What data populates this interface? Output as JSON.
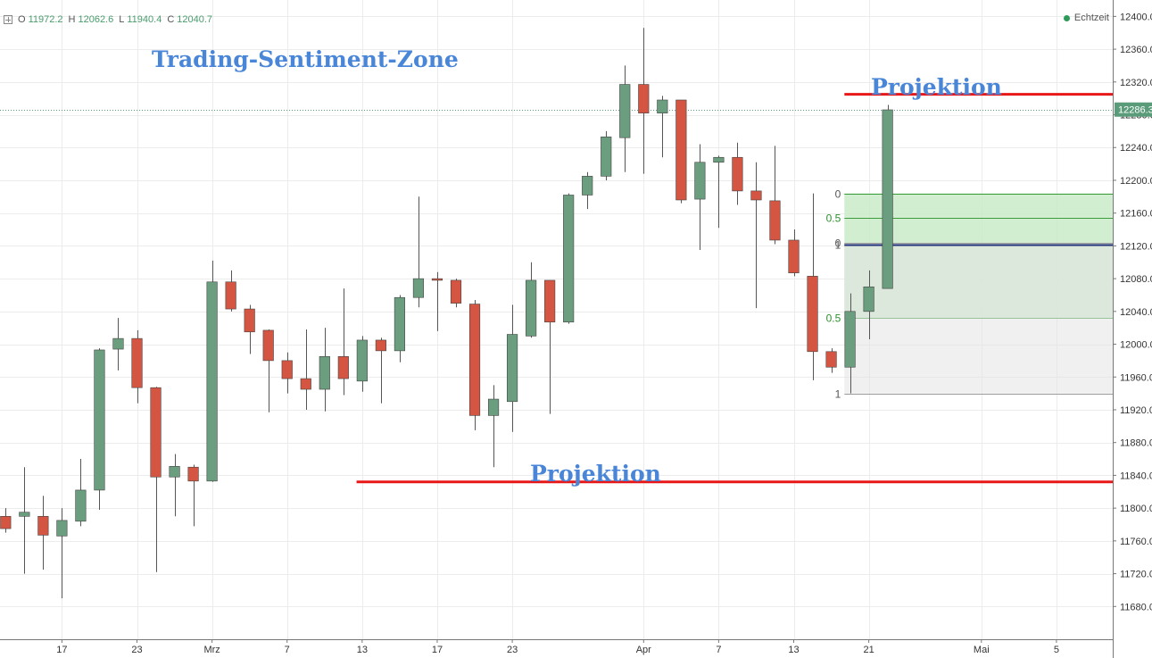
{
  "header": {
    "ohlc": [
      {
        "key": "O",
        "value": "11972.2"
      },
      {
        "key": "H",
        "value": "12062.6"
      },
      {
        "key": "L",
        "value": "11940.4"
      },
      {
        "key": "C",
        "value": "12040.7"
      }
    ],
    "realtime_label": "Echtzeit"
  },
  "annotations": {
    "title": "Trading-Sentiment-Zone",
    "projection_top": "Projektion",
    "projection_bottom": "Projektion"
  },
  "colors": {
    "up": "#6a9e7f",
    "down": "#d45541",
    "grid": "#ececec",
    "projection_line": "#e81818",
    "annotation": "#4a86d8",
    "price_tag": "#5a9c7a",
    "zone_green": "#c9ebc9",
    "zone_gray": "#e4e4e4"
  },
  "chart_data": {
    "type": "candlestick",
    "y_axis": {
      "range": [
        11640,
        12420
      ],
      "ticks": [
        "11680.0",
        "11720.0",
        "11760.0",
        "11800.0",
        "11840.0",
        "11880.0",
        "11920.0",
        "11960.0",
        "12000.0",
        "12040.0",
        "12080.0",
        "12120.0",
        "12160.0",
        "12200.0",
        "12240.0",
        "12280.0",
        "12320.0",
        "12360.0",
        "12400.0"
      ],
      "current_price": "12286.3"
    },
    "x_axis": {
      "ticks": [
        {
          "label": "17",
          "i": 3
        },
        {
          "label": "23",
          "i": 7
        },
        {
          "label": "Mrz",
          "i": 11
        },
        {
          "label": "7",
          "i": 15
        },
        {
          "label": "13",
          "i": 19
        },
        {
          "label": "17",
          "i": 23
        },
        {
          "label": "23",
          "i": 27
        },
        {
          "label": "Apr",
          "i": 34
        },
        {
          "label": "7",
          "i": 38
        },
        {
          "label": "13",
          "i": 42
        },
        {
          "label": "21",
          "i": 46
        },
        {
          "label": "Mai",
          "i": 52
        },
        {
          "label": "5",
          "i": 56
        }
      ],
      "index_range": [
        -0.3,
        59
      ]
    },
    "candles": [
      {
        "o": 11790,
        "h": 11800,
        "l": 11770,
        "c": 11775
      },
      {
        "o": 11790,
        "h": 11850,
        "l": 11720,
        "c": 11795
      },
      {
        "o": 11790,
        "h": 11815,
        "l": 11725,
        "c": 11767
      },
      {
        "o": 11766,
        "h": 11800,
        "l": 11690,
        "c": 11785
      },
      {
        "o": 11784,
        "h": 11860,
        "l": 11778,
        "c": 11822
      },
      {
        "o": 11822,
        "h": 11995,
        "l": 11798,
        "c": 11993
      },
      {
        "o": 11994,
        "h": 12032,
        "l": 11968,
        "c": 12007
      },
      {
        "o": 12007,
        "h": 12017,
        "l": 11928,
        "c": 11947
      },
      {
        "o": 11947,
        "h": 11948,
        "l": 11722,
        "c": 11838
      },
      {
        "o": 11838,
        "h": 11866,
        "l": 11790,
        "c": 11851
      },
      {
        "o": 11850,
        "h": 11853,
        "l": 11778,
        "c": 11833
      },
      {
        "o": 11833,
        "h": 12102,
        "l": 11832,
        "c": 12076
      },
      {
        "o": 12076,
        "h": 12090,
        "l": 12040,
        "c": 12043
      },
      {
        "o": 12043,
        "h": 12048,
        "l": 11988,
        "c": 12015
      },
      {
        "o": 12017,
        "h": 12018,
        "l": 11917,
        "c": 11980
      },
      {
        "o": 11980,
        "h": 11990,
        "l": 11940,
        "c": 11958
      },
      {
        "o": 11958,
        "h": 12018,
        "l": 11920,
        "c": 11945
      },
      {
        "o": 11945,
        "h": 12020,
        "l": 11918,
        "c": 11985
      },
      {
        "o": 11985,
        "h": 12068,
        "l": 11938,
        "c": 11958
      },
      {
        "o": 11955,
        "h": 12010,
        "l": 11942,
        "c": 12005
      },
      {
        "o": 12005,
        "h": 12008,
        "l": 11928,
        "c": 11992
      },
      {
        "o": 11992,
        "h": 12060,
        "l": 11978,
        "c": 12057
      },
      {
        "o": 12057,
        "h": 12180,
        "l": 12045,
        "c": 12080
      },
      {
        "o": 12080,
        "h": 12088,
        "l": 12016,
        "c": 12078
      },
      {
        "o": 12078,
        "h": 12080,
        "l": 12045,
        "c": 12050
      },
      {
        "o": 12049,
        "h": 12054,
        "l": 11895,
        "c": 11913
      },
      {
        "o": 11913,
        "h": 11950,
        "l": 11850,
        "c": 11933
      },
      {
        "o": 11930,
        "h": 12048,
        "l": 11893,
        "c": 12012
      },
      {
        "o": 12010,
        "h": 12100,
        "l": 12008,
        "c": 12078
      },
      {
        "o": 12078,
        "h": 12078,
        "l": 11915,
        "c": 12027
      },
      {
        "o": 12027,
        "h": 12184,
        "l": 12025,
        "c": 12182
      },
      {
        "o": 12182,
        "h": 12210,
        "l": 12165,
        "c": 12205
      },
      {
        "o": 12205,
        "h": 12260,
        "l": 12200,
        "c": 12253
      },
      {
        "o": 12252,
        "h": 12340,
        "l": 12210,
        "c": 12317
      },
      {
        "o": 12317,
        "h": 12386,
        "l": 12208,
        "c": 12282
      },
      {
        "o": 12282,
        "h": 12303,
        "l": 12228,
        "c": 12298
      },
      {
        "o": 12298,
        "h": 12298,
        "l": 12172,
        "c": 12176
      },
      {
        "o": 12177,
        "h": 12244,
        "l": 12115,
        "c": 12222
      },
      {
        "o": 12222,
        "h": 12230,
        "l": 12142,
        "c": 12228
      },
      {
        "o": 12228,
        "h": 12246,
        "l": 12170,
        "c": 12187
      },
      {
        "o": 12187,
        "h": 12222,
        "l": 12044,
        "c": 12176
      },
      {
        "o": 12175,
        "h": 12242,
        "l": 12122,
        "c": 12127
      },
      {
        "o": 12127,
        "h": 12140,
        "l": 12083,
        "c": 12087
      },
      {
        "o": 12083,
        "h": 12184,
        "l": 11956,
        "c": 11991
      },
      {
        "o": 11991,
        "h": 11995,
        "l": 11965,
        "c": 11972
      },
      {
        "o": 11972,
        "h": 12062,
        "l": 11940,
        "c": 12040
      },
      {
        "o": 12040,
        "h": 12090,
        "l": 12006,
        "c": 12070
      },
      {
        "o": 12068,
        "h": 12292,
        "l": 12068,
        "c": 12286
      }
    ],
    "fib_zones": [
      {
        "x1": 44.7,
        "x2": 59,
        "y_top": 12184,
        "y_bottom": 12032,
        "fill": "green",
        "levels": [
          {
            "label": "0",
            "y": 12184
          },
          {
            "label": "0.5",
            "y": 12154
          },
          {
            "label": "1",
            "y": 12122
          },
          {
            "label": "0.5",
            "y": 12032
          }
        ]
      },
      {
        "x1": 44.7,
        "x2": 59,
        "y_top": 12124,
        "y_bottom": 11940,
        "fill": "gray",
        "levels": [
          {
            "label": "0",
            "y": 12124
          },
          {
            "label": "1",
            "y": 11940
          }
        ]
      }
    ],
    "midline": {
      "y": 12121,
      "x1": 44.7,
      "x2": 59
    },
    "projection_lines": [
      {
        "y": 12305,
        "x1": 44.7,
        "x2": 59
      },
      {
        "y": 11832,
        "x1": 18.7,
        "x2": 59
      }
    ]
  }
}
